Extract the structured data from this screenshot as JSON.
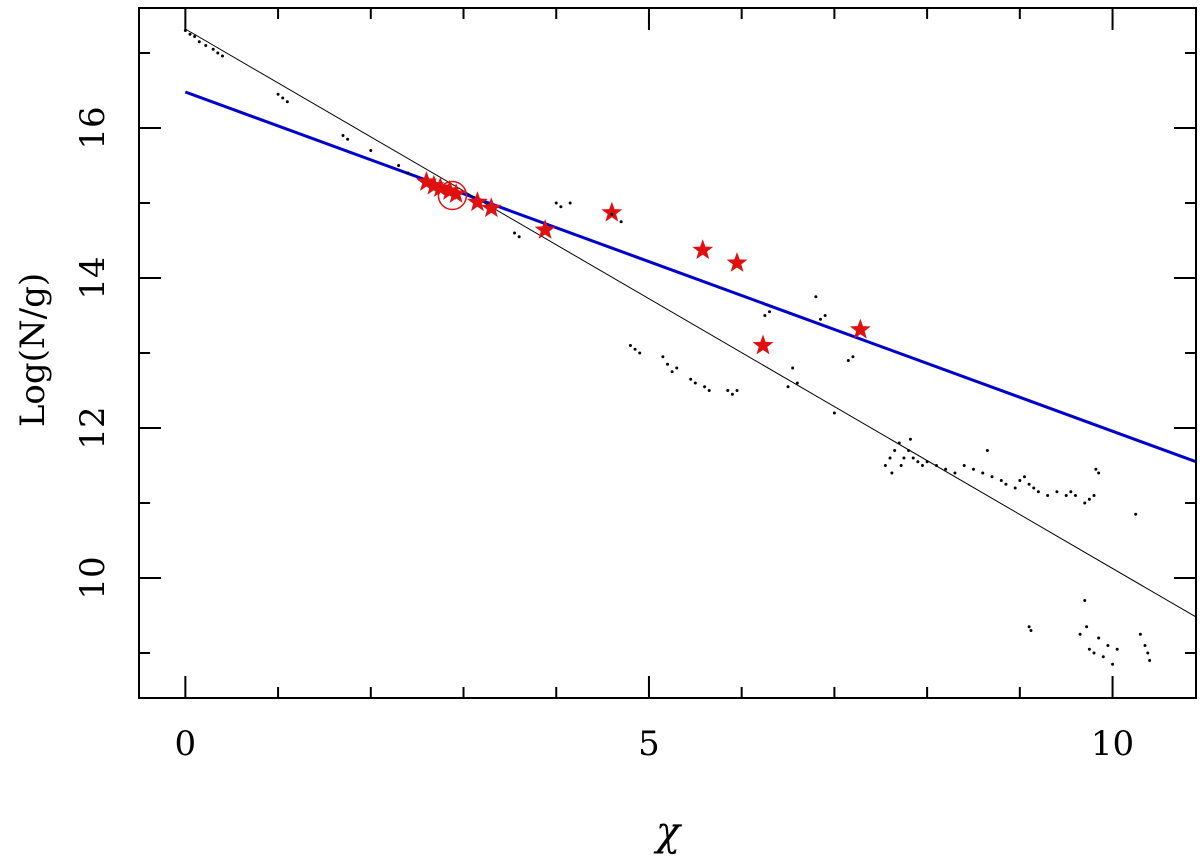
{
  "chart_data": {
    "type": "scatter",
    "xlabel": "χ",
    "ylabel": "Log(N/g)",
    "xlim": [
      -0.5,
      10.9
    ],
    "ylim": [
      8.4,
      17.6
    ],
    "x_ticks": [
      0,
      5,
      10
    ],
    "x_tick_labels": [
      "0",
      "5",
      "10"
    ],
    "x_minor_ticks": [
      1,
      2,
      3,
      4,
      6,
      7,
      8,
      9
    ],
    "y_ticks": [
      10,
      12,
      14,
      16
    ],
    "y_tick_labels": [
      "10",
      "12",
      "14",
      "16"
    ],
    "y_minor_ticks": [
      9,
      11,
      13,
      15,
      17
    ],
    "grid": false,
    "colors": {
      "fit_line": "#0000cc",
      "reference_line": "#000000",
      "stars": "#e01010",
      "points": "#000000"
    },
    "series": [
      {
        "kind": "line",
        "color": "#0000cc",
        "x": [
          0,
          10.9
        ],
        "y": [
          16.48,
          11.55
        ]
      },
      {
        "kind": "line",
        "color": "#000000",
        "x": [
          0,
          10.9
        ],
        "y": [
          17.32,
          9.48
        ]
      },
      {
        "kind": "stars",
        "color": "#e01010",
        "x": [
          2.6,
          2.68,
          2.75,
          2.85,
          2.92,
          3.15,
          3.3,
          3.88,
          4.6,
          5.58,
          5.95,
          6.23,
          7.28
        ],
        "y": [
          15.28,
          15.23,
          15.2,
          15.16,
          15.12,
          15.01,
          14.93,
          14.64,
          14.87,
          14.37,
          14.2,
          13.1,
          13.31
        ]
      },
      {
        "kind": "circle",
        "color": "#e01010",
        "x": [
          2.88
        ],
        "y": [
          15.1
        ]
      },
      {
        "kind": "points",
        "color": "#000000",
        "x": [
          0.0,
          0.05,
          0.1,
          0.15,
          0.22,
          0.3,
          0.35,
          0.4,
          1.0,
          1.05,
          1.1,
          1.7,
          1.75,
          2.0,
          2.3,
          2.4,
          3.55,
          3.6,
          4.0,
          4.05,
          4.15,
          4.6,
          4.7,
          4.8,
          4.85,
          4.9,
          5.15,
          5.2,
          5.25,
          5.3,
          5.45,
          5.5,
          5.6,
          5.65,
          5.85,
          5.9,
          5.95,
          6.25,
          6.3,
          6.5,
          6.55,
          6.6,
          6.8,
          6.85,
          6.9,
          7.0,
          7.15,
          7.2,
          7.55,
          7.6,
          7.62,
          7.65,
          7.7,
          7.72,
          7.75,
          7.8,
          7.82,
          7.85,
          7.9,
          7.95,
          8.0,
          8.1,
          8.2,
          8.3,
          8.4,
          8.5,
          8.6,
          8.65,
          8.7,
          8.8,
          8.85,
          8.95,
          9.0,
          9.05,
          9.1,
          9.15,
          9.2,
          9.3,
          9.4,
          9.5,
          9.55,
          9.6,
          9.7,
          9.75,
          9.8,
          9.82,
          9.85,
          9.1,
          9.12,
          9.65,
          9.7,
          9.72,
          9.75,
          9.8,
          9.85,
          9.9,
          9.95,
          10.0,
          10.05,
          10.25,
          10.3,
          10.35,
          10.38,
          10.4
        ],
        "y": [
          17.3,
          17.25,
          17.22,
          17.15,
          17.1,
          17.05,
          17.0,
          16.96,
          16.45,
          16.4,
          16.35,
          15.9,
          15.85,
          15.7,
          15.5,
          15.4,
          14.6,
          14.55,
          15.0,
          14.95,
          15.0,
          14.85,
          14.75,
          13.1,
          13.05,
          13.0,
          12.95,
          12.85,
          12.75,
          12.8,
          12.65,
          12.6,
          12.55,
          12.5,
          12.5,
          12.45,
          12.5,
          13.5,
          13.55,
          12.55,
          12.8,
          12.6,
          13.75,
          13.45,
          13.5,
          12.2,
          12.9,
          12.95,
          11.5,
          11.6,
          11.4,
          11.7,
          11.8,
          11.5,
          11.6,
          11.7,
          11.85,
          11.6,
          11.55,
          11.5,
          11.55,
          11.5,
          11.45,
          11.4,
          11.5,
          11.45,
          11.4,
          11.7,
          11.35,
          11.3,
          11.25,
          11.2,
          11.3,
          11.35,
          11.25,
          11.2,
          11.15,
          11.1,
          11.15,
          11.1,
          11.15,
          11.1,
          11.0,
          11.05,
          11.1,
          11.45,
          11.4,
          9.35,
          9.3,
          9.25,
          9.7,
          9.35,
          9.05,
          9.0,
          9.2,
          8.95,
          9.1,
          8.85,
          9.05,
          10.85,
          9.25,
          9.1,
          9.0,
          8.9
        ]
      }
    ]
  }
}
